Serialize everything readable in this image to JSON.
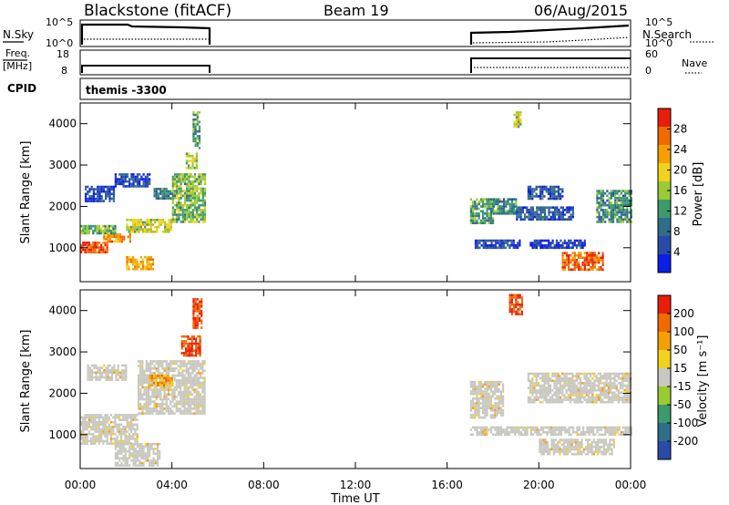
{
  "header": {
    "radar": "Blackstone (fitACF)",
    "beam": "Beam 19",
    "date": "06/Aug/2015"
  },
  "panels": {
    "nsky": {
      "label": "N.Sky",
      "ticks": [
        "10^5",
        "10^0"
      ],
      "right_label": "N.Search",
      "right_ticks": [
        "10^5",
        "10^0"
      ]
    },
    "freq": {
      "label_line1": "Freq.",
      "label_line2": "[MHz]",
      "ticks": [
        "18",
        "8"
      ],
      "right_label": "Nave",
      "right_ticks": [
        "60",
        "0"
      ]
    },
    "cpid": {
      "label": "CPID",
      "value": "themis -3300"
    }
  },
  "colors": {
    "power_scale": [
      "#0a1ee6",
      "#2a4aa8",
      "#2f6e88",
      "#3c9a6c",
      "#9acb34",
      "#f2d21c",
      "#f5a000",
      "#f06a00",
      "#e81e0a"
    ],
    "velocity_scale": [
      "#e81e0a",
      "#f06a00",
      "#f5a000",
      "#f2d21c",
      "#c8c8c0",
      "#9acb34",
      "#3c9a6c",
      "#2f6e88",
      "#2a4aa8"
    ],
    "ground_scatter": "#c8c8c0"
  },
  "chart_data": [
    {
      "type": "heatmap",
      "name": "power",
      "ylabel": "Slant Range [km]",
      "xlabel": "Time UT",
      "ylim": [
        180,
        4500
      ],
      "xlim": [
        0,
        24
      ],
      "yticks": [
        "1000",
        "2000",
        "3000",
        "4000"
      ],
      "xticks": [
        "00:00",
        "04:00",
        "08:00",
        "12:00",
        "16:00",
        "20:00",
        "00:00"
      ],
      "colorbar_label": "Power [dB]",
      "colorbar_ticks": [
        "28",
        "24",
        "20",
        "16",
        "12",
        "8",
        "4"
      ],
      "colorbar_range": [
        0,
        30
      ],
      "data_gaps": [
        [
          5.5,
          17.0
        ]
      ],
      "regions": [
        {
          "t0": 0.0,
          "t1": 1.2,
          "r0": 900,
          "r1": 1150,
          "level": 0.9
        },
        {
          "t0": 1.0,
          "t1": 2.2,
          "r0": 1150,
          "r1": 1350,
          "level": 0.75
        },
        {
          "t0": 2.0,
          "t1": 4.0,
          "r0": 1400,
          "r1": 1700,
          "level": 0.55
        },
        {
          "t0": 0.0,
          "t1": 1.5,
          "r0": 1350,
          "r1": 1550,
          "level": 0.45
        },
        {
          "t0": 2.0,
          "t1": 3.2,
          "r0": 500,
          "r1": 800,
          "level": 0.7
        },
        {
          "t0": 0.2,
          "t1": 1.5,
          "r0": 2150,
          "r1": 2500,
          "level": 0.15
        },
        {
          "t0": 1.5,
          "t1": 3.0,
          "r0": 2500,
          "r1": 2800,
          "level": 0.15
        },
        {
          "t0": 3.2,
          "t1": 4.0,
          "r0": 2200,
          "r1": 2450,
          "level": 0.3
        },
        {
          "t0": 4.0,
          "t1": 5.4,
          "r0": 1600,
          "r1": 2800,
          "level": 0.45
        },
        {
          "t0": 4.6,
          "t1": 5.1,
          "r0": 2900,
          "r1": 3300,
          "level": 0.5
        },
        {
          "t0": 4.9,
          "t1": 5.2,
          "r0": 3400,
          "r1": 4300,
          "level": 0.4
        },
        {
          "t0": 17.0,
          "t1": 18.0,
          "r0": 1600,
          "r1": 2200,
          "level": 0.4
        },
        {
          "t0": 17.2,
          "t1": 19.2,
          "r0": 1000,
          "r1": 1200,
          "level": 0.15
        },
        {
          "t0": 18.0,
          "t1": 19.0,
          "r0": 1800,
          "r1": 2200,
          "level": 0.35
        },
        {
          "t0": 19.5,
          "t1": 21.0,
          "r0": 2200,
          "r1": 2500,
          "level": 0.2
        },
        {
          "t0": 21.0,
          "t1": 22.8,
          "r0": 450,
          "r1": 900,
          "level": 0.85
        },
        {
          "t0": 22.5,
          "t1": 24.0,
          "r0": 1600,
          "r1": 2400,
          "level": 0.35
        },
        {
          "t0": 18.9,
          "t1": 19.2,
          "r0": 3900,
          "r1": 4300,
          "level": 0.55
        },
        {
          "t0": 19.6,
          "t1": 22.0,
          "r0": 1000,
          "r1": 1200,
          "level": 0.12
        },
        {
          "t0": 19.0,
          "t1": 21.5,
          "r0": 1700,
          "r1": 2000,
          "level": 0.2
        }
      ]
    },
    {
      "type": "heatmap",
      "name": "velocity",
      "ylabel": "Slant Range [km]",
      "xlabel": "Time UT",
      "ylim": [
        180,
        4500
      ],
      "xlim": [
        0,
        24
      ],
      "yticks": [
        "1000",
        "2000",
        "3000",
        "4000"
      ],
      "xticks": [
        "00:00",
        "04:00",
        "08:00",
        "12:00",
        "16:00",
        "20:00",
        "00:00"
      ],
      "colorbar_label": "Velocity [m s⁻¹]",
      "colorbar_ticks": [
        "200",
        "100",
        "50",
        "15",
        "-15",
        "-50",
        "-100",
        "-200"
      ],
      "colorbar_range": [
        -250,
        250
      ],
      "data_gaps": [
        [
          5.5,
          17.0
        ]
      ],
      "regions": [
        {
          "t0": 0.0,
          "t1": 2.5,
          "r0": 800,
          "r1": 1500,
          "kind": "ground"
        },
        {
          "t0": 2.5,
          "t1": 5.4,
          "r0": 1500,
          "r1": 2800,
          "kind": "ground"
        },
        {
          "t0": 1.5,
          "t1": 3.5,
          "r0": 250,
          "r1": 800,
          "kind": "ground"
        },
        {
          "t0": 0.3,
          "t1": 2.0,
          "r0": 2300,
          "r1": 2700,
          "kind": "ground"
        },
        {
          "t0": 3.0,
          "t1": 4.0,
          "r0": 2200,
          "r1": 2450,
          "kind": "orange"
        },
        {
          "t0": 4.4,
          "t1": 5.2,
          "r0": 2900,
          "r1": 3400,
          "kind": "red"
        },
        {
          "t0": 4.9,
          "t1": 5.3,
          "r0": 3600,
          "r1": 4300,
          "kind": "red"
        },
        {
          "t0": 17.0,
          "t1": 18.4,
          "r0": 1400,
          "r1": 2300,
          "kind": "ground"
        },
        {
          "t0": 17.0,
          "t1": 24.0,
          "r0": 1000,
          "r1": 1200,
          "kind": "ground"
        },
        {
          "t0": 20.0,
          "t1": 23.3,
          "r0": 500,
          "r1": 900,
          "kind": "ground"
        },
        {
          "t0": 19.5,
          "t1": 24.0,
          "r0": 1800,
          "r1": 2500,
          "kind": "ground"
        },
        {
          "t0": 18.7,
          "t1": 19.3,
          "r0": 3900,
          "r1": 4400,
          "kind": "red"
        }
      ]
    }
  ]
}
